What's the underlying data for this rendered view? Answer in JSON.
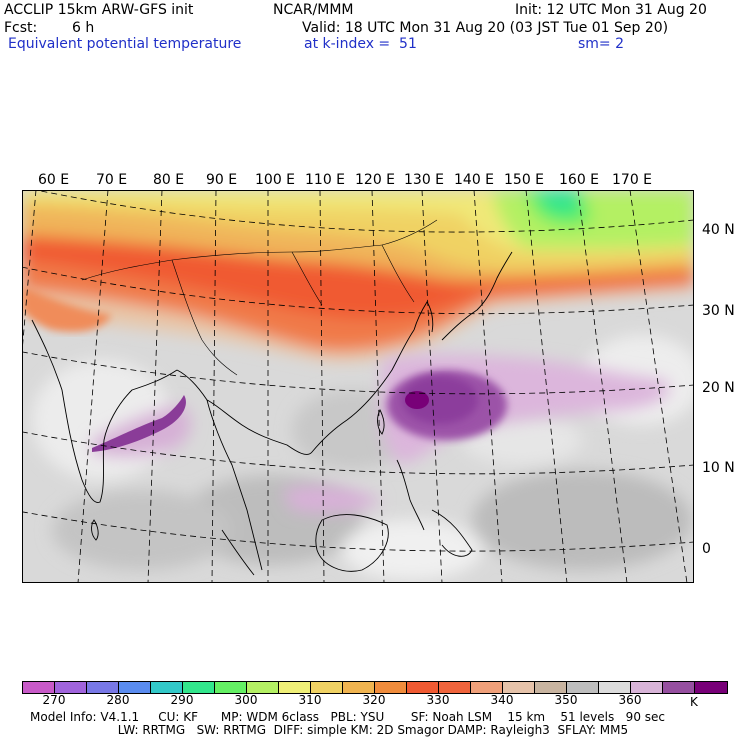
{
  "header": {
    "model": "ACCLIP 15km ARW-GFS init",
    "org": "NCAR/MMM",
    "init": "Init: 12 UTC Mon 31 Aug 20",
    "fcst_label": "Fcst:",
    "fcst_value": "6 h",
    "valid": "Valid: 18 UTC Mon 31 Aug 20 (03 JST Tue 01 Sep 20)",
    "field": "Equivalent potential temperature",
    "kindex": "at k-index =  51",
    "sm": "sm= 2"
  },
  "map": {
    "lon_labels": [
      "60 E",
      "70 E",
      "80 E",
      "90 E",
      "100 E",
      "110 E",
      "120 E",
      "130 E",
      "140 E",
      "150 E",
      "160 E",
      "170 E"
    ],
    "lat_labels": [
      "40 N",
      "30 N",
      "20 N",
      "10 N",
      "0"
    ]
  },
  "colorbar": {
    "colors": [
      "#c85ac8",
      "#a064dc",
      "#7878e6",
      "#5a8cf0",
      "#32c8c8",
      "#32e68c",
      "#64f064",
      "#b4f064",
      "#f0f078",
      "#f0d264",
      "#f0b450",
      "#f08c3c",
      "#f05a32",
      "#f0643c",
      "#f0a07a",
      "#e6c3aa",
      "#c8b4a0",
      "#bebebe",
      "#dcdcdc",
      "#d8b4d8",
      "#9650a0",
      "#780078"
    ],
    "ticks": [
      "270",
      "280",
      "290",
      "300",
      "310",
      "320",
      "330",
      "340",
      "350",
      "360"
    ],
    "unit": "K"
  },
  "footer": {
    "line1": "Model Info: V4.1.1     CU: KF      MP: WDM 6class   PBL: YSU       SF: Noah LSM    15 km    51 levels   90 sec",
    "line2": "                       LW: RRTMG   SW: RRTMG  DIFF: simple KM: 2D Smagor DAMP: Rayleigh3  SFLAY: MM5"
  }
}
